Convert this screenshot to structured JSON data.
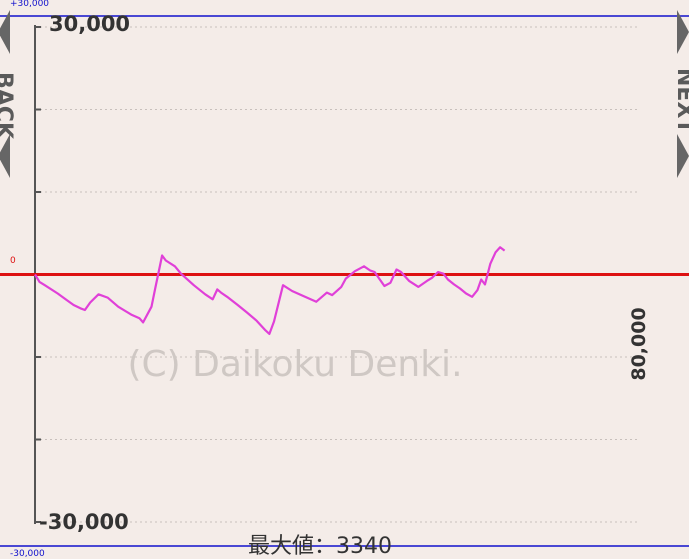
{
  "top_left_label": "+30,000",
  "bottom_left_label": "-30,000",
  "zero_label": "0",
  "nav": {
    "back_label": "BACK",
    "next_label": "NEXT"
  },
  "colors": {
    "background": "#f4ece8",
    "line": "#e040d8",
    "zero_line": "#dd1111",
    "bound_line": "#1010cc",
    "axis": "#555555",
    "grid": "#c8c0bc",
    "watermark": "#cfc8c4",
    "nav_arrow": "#666666"
  },
  "watermark_text": "(C) Daikoku Denki.",
  "chart_data": {
    "type": "line",
    "ylim": [
      -30000,
      30000
    ],
    "xlim": [
      0,
      80000
    ],
    "y_tick_labels": [
      "30,000",
      "-30,000"
    ],
    "x_tick_label": "80,000",
    "summary_label": "最大値：3340",
    "grid": true,
    "series": [
      {
        "x": [
          0,
          600,
          1300,
          3000,
          4200,
          5100,
          6000,
          6600,
          7300,
          8400,
          9600,
          11000,
          12800,
          13800,
          14300,
          15400,
          15900,
          16800,
          17300,
          18500,
          19300,
          21000,
          22500,
          23500,
          24100,
          24600,
          25400,
          26800,
          28000,
          29300,
          30400,
          31000,
          31600,
          32800,
          34000,
          35700,
          37200,
          38600,
          39300,
          40500,
          41100,
          42300,
          43500,
          44300,
          44900,
          45600,
          46200,
          47000,
          47800,
          48400,
          49500,
          50700,
          51800,
          52500,
          53300,
          54000,
          54600,
          55400,
          56200,
          57000,
          57800,
          58500,
          59000,
          59500,
          60200,
          60900,
          61500,
          62100
        ],
        "y": [
          0,
          -900,
          -1300,
          -2300,
          -3100,
          -3700,
          -4100,
          -4300,
          -3400,
          -2400,
          -2800,
          -3900,
          -4900,
          -5300,
          -5800,
          -3900,
          -1700,
          2300,
          1700,
          1000,
          100,
          -1300,
          -2400,
          -3000,
          -1800,
          -2200,
          -2700,
          -3700,
          -4600,
          -5600,
          -6700,
          -7200,
          -5700,
          -1300,
          -2000,
          -2700,
          -3300,
          -2200,
          -2500,
          -1500,
          -500,
          400,
          1000,
          500,
          300,
          -600,
          -1400,
          -1000,
          600,
          300,
          -800,
          -1500,
          -800,
          -400,
          300,
          100,
          -600,
          -1200,
          -1700,
          -2300,
          -2700,
          -1900,
          -600,
          -1200,
          1300,
          2700,
          3300,
          2900
        ],
        "final_label": "最大値：3340"
      }
    ]
  }
}
